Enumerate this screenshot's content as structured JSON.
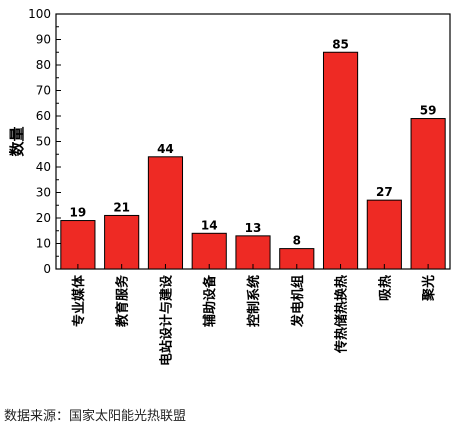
{
  "chart_data": {
    "type": "bar",
    "title": "",
    "xlabel": "",
    "ylabel": "数量",
    "ylim": [
      0,
      100
    ],
    "yticks": [
      0,
      10,
      20,
      30,
      40,
      50,
      60,
      70,
      80,
      90,
      100
    ],
    "categories": [
      "专业媒体",
      "教育服务",
      "电站设计与建设",
      "辅助设备",
      "控制系统",
      "发电机组",
      "传热储热换热",
      "吸热",
      "聚光"
    ],
    "values": [
      19,
      21,
      44,
      14,
      13,
      8,
      85,
      27,
      59
    ],
    "bar_color": "#ee2a24",
    "grid": false
  },
  "source_note": "数据来源：国家太阳能光热联盟"
}
